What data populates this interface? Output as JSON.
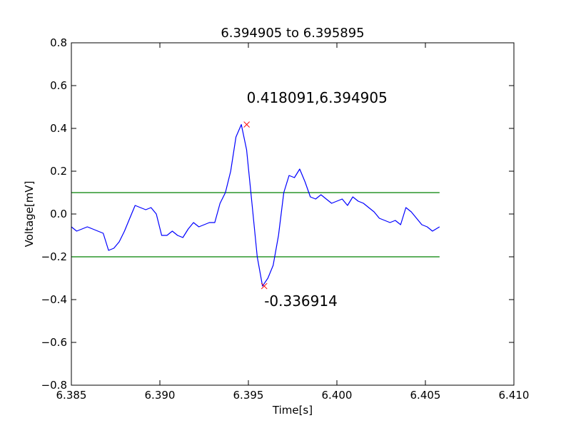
{
  "chart_data": {
    "type": "line",
    "title": "6.394905 to 6.395895",
    "xlabel": "Time[s]",
    "ylabel": "Voltage[mV]",
    "xlim": [
      6.385,
      6.41
    ],
    "ylim": [
      -0.8,
      0.8
    ],
    "xticks": [
      6.385,
      6.39,
      6.395,
      6.4,
      6.405,
      6.41
    ],
    "xtick_labels": [
      "6.385",
      "6.390",
      "6.395",
      "6.400",
      "6.405",
      "6.410"
    ],
    "yticks": [
      -0.8,
      -0.6,
      -0.4,
      -0.2,
      0.0,
      0.2,
      0.4,
      0.6,
      0.8
    ],
    "ytick_labels": [
      "−0.8",
      "−0.6",
      "−0.4",
      "−0.2",
      "0.0",
      "0.2",
      "0.4",
      "0.6",
      "0.8"
    ],
    "grid": false,
    "colors": {
      "signal": "#0000ff",
      "threshold": "#008000",
      "marker": "#ff0000"
    },
    "signal": {
      "x": [
        6.385,
        6.3853,
        6.3856,
        6.3859,
        6.3862,
        6.3865,
        6.3868,
        6.3871,
        6.3874,
        6.3877,
        6.388,
        6.3883,
        6.3886,
        6.3889,
        6.3892,
        6.3895,
        6.3898,
        6.3901,
        6.3904,
        6.3907,
        6.391,
        6.3913,
        6.3916,
        6.3919,
        6.3922,
        6.3925,
        6.3928,
        6.3931,
        6.3934,
        6.3937,
        6.394,
        6.3943,
        6.3946,
        6.3949,
        6.3952,
        6.3955,
        6.3958,
        6.3961,
        6.3964,
        6.3967,
        6.397,
        6.3973,
        6.3976,
        6.3979,
        6.3982,
        6.3985,
        6.3988,
        6.3991,
        6.3994,
        6.3997,
        6.4,
        6.4003,
        6.4006,
        6.4009,
        6.4012,
        6.4015,
        6.4018,
        6.4021,
        6.4024,
        6.4027,
        6.403,
        6.4033,
        6.4036,
        6.4039,
        6.4042,
        6.4045,
        6.4048,
        6.4051,
        6.4054,
        6.4058
      ],
      "y": [
        -0.06,
        -0.08,
        -0.07,
        -0.06,
        -0.07,
        -0.08,
        -0.09,
        -0.17,
        -0.16,
        -0.13,
        -0.08,
        -0.02,
        0.04,
        0.03,
        0.02,
        0.03,
        0.0,
        -0.1,
        -0.1,
        -0.08,
        -0.1,
        -0.11,
        -0.07,
        -0.04,
        -0.06,
        -0.05,
        -0.04,
        -0.04,
        0.05,
        0.1,
        0.2,
        0.36,
        0.418,
        0.3,
        0.05,
        -0.2,
        -0.337,
        -0.3,
        -0.24,
        -0.1,
        0.1,
        0.18,
        0.17,
        0.21,
        0.15,
        0.08,
        0.07,
        0.09,
        0.07,
        0.05,
        0.06,
        0.07,
        0.04,
        0.08,
        0.06,
        0.05,
        0.03,
        0.01,
        -0.02,
        -0.03,
        -0.04,
        -0.03,
        -0.05,
        0.03,
        0.01,
        -0.02,
        -0.05,
        -0.06,
        -0.08,
        -0.06
      ]
    },
    "thresholds": [
      {
        "y": 0.1,
        "x_range": [
          6.385,
          6.4058
        ]
      },
      {
        "y": -0.2,
        "x_range": [
          6.385,
          6.4058
        ]
      }
    ],
    "markers": [
      {
        "x": 6.394905,
        "y": 0.418091
      },
      {
        "x": 6.395895,
        "y": -0.336914
      }
    ],
    "annotations": [
      {
        "text": "0.418091,6.394905",
        "x": 6.394905,
        "y": 0.52
      },
      {
        "text": "-0.336914",
        "x": 6.395895,
        "y": -0.43
      }
    ]
  }
}
